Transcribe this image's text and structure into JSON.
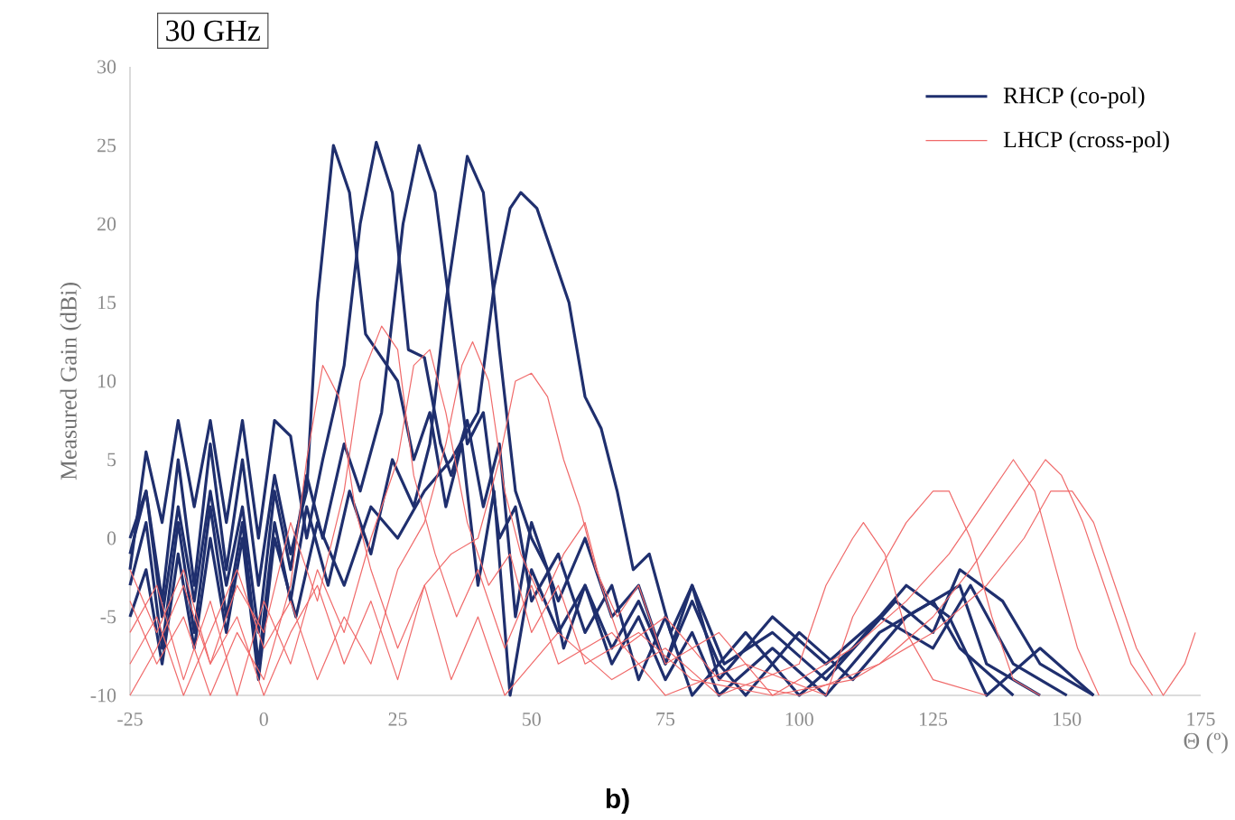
{
  "chart_data": {
    "type": "line",
    "title": "30 GHz",
    "xlabel": "Θ (º)",
    "ylabel": "Measured Gain (dBi)",
    "annotations": [
      "b)"
    ],
    "xlim": [
      -25,
      175
    ],
    "xticks": [
      -25,
      0,
      25,
      50,
      75,
      100,
      125,
      150,
      175
    ],
    "ylim": [
      -10,
      30
    ],
    "yticks": [
      -10,
      -5,
      0,
      5,
      10,
      15,
      20,
      25,
      30
    ],
    "grid": false,
    "legend": "top right",
    "marker": "none",
    "line_style": "solid",
    "series": [
      {
        "name": "RHCP (co-pol)",
        "color": "#1f2f6e",
        "x": [
          -25,
          -22,
          -19,
          -16,
          -13,
          -10,
          -7,
          -4,
          -1,
          2,
          5,
          8,
          10,
          13,
          16,
          19,
          22,
          25,
          28,
          31,
          34,
          37,
          40,
          43,
          46,
          50,
          55,
          60,
          65,
          70,
          75,
          80,
          85,
          95,
          105,
          115,
          125,
          130,
          140
        ],
        "values": [
          -1,
          3,
          -4,
          5,
          -3,
          6,
          -2,
          5,
          -3,
          4,
          -1,
          3,
          15,
          25,
          22,
          13,
          11.5,
          10,
          5,
          8,
          2,
          6,
          -3,
          3,
          -10,
          -2,
          -6,
          -3,
          -8,
          -5,
          -9,
          -6,
          -10,
          -7,
          -10,
          -6,
          -4,
          -7,
          -10
        ]
      },
      {
        "color": "#1f2f6e",
        "x": [
          -25,
          -22,
          -19,
          -16,
          -13,
          -10,
          -7,
          -4,
          -1,
          2,
          5,
          8,
          11,
          15,
          18,
          21,
          24,
          27,
          30,
          33,
          35,
          38,
          41,
          44,
          47,
          50,
          55,
          60,
          65,
          70,
          75,
          80,
          85,
          90,
          100,
          110,
          120,
          130,
          135,
          145
        ],
        "values": [
          -2,
          5.5,
          1,
          7.5,
          2,
          7.5,
          1,
          7.5,
          0,
          7.5,
          6.5,
          0,
          5,
          11,
          20,
          25.2,
          22,
          12,
          11.5,
          6,
          4,
          7.5,
          2,
          6,
          -5,
          1,
          -4,
          0,
          -5,
          -3,
          -8,
          -4,
          -8,
          -10,
          -6,
          -9,
          -5,
          -3,
          -8,
          -10
        ]
      },
      {
        "color": "#1f2f6e",
        "x": [
          -25,
          -22,
          -19,
          -16,
          -13,
          -10,
          -7,
          -4,
          -1,
          2,
          5,
          8,
          11,
          15,
          18,
          22,
          26,
          29,
          32,
          35,
          38,
          41,
          44,
          47,
          50,
          55,
          60,
          65,
          70,
          75,
          80,
          90,
          100,
          110,
          120,
          128,
          135,
          145,
          155
        ],
        "values": [
          0,
          3,
          -5,
          2,
          -4,
          3,
          -3,
          2,
          -6,
          3,
          -2,
          4,
          0,
          6,
          3,
          8,
          20,
          25,
          22,
          14,
          6,
          8,
          0,
          2,
          -4,
          -1,
          -6,
          -3,
          -9,
          -5,
          -10,
          -6,
          -10,
          -7,
          -3,
          -5,
          -10,
          -7,
          -10
        ]
      },
      {
        "color": "#1f2f6e",
        "x": [
          -25,
          -22,
          -19,
          -16,
          -13,
          -10,
          -7,
          -4,
          -1,
          2,
          5,
          8,
          12,
          16,
          20,
          24,
          28,
          31,
          34,
          38,
          41,
          44,
          47,
          50,
          53,
          56,
          60,
          65,
          70,
          75,
          80,
          85,
          95,
          105,
          115,
          125,
          132,
          140,
          150
        ],
        "values": [
          -3,
          1,
          -7,
          1,
          -6,
          2,
          -5,
          1,
          -8,
          1,
          -4,
          2,
          -3,
          3,
          -1,
          5,
          2,
          6,
          15,
          24.3,
          22,
          12,
          3,
          0,
          -2,
          -7,
          -3,
          -7,
          -4,
          -8,
          -3,
          -9,
          -5,
          -8,
          -5,
          -7,
          -3,
          -8,
          -10
        ]
      },
      {
        "color": "#1f2f6e",
        "x": [
          -25,
          -22,
          -19,
          -16,
          -13,
          -10,
          -7,
          -4,
          -1,
          2,
          6,
          10,
          15,
          20,
          25,
          30,
          35,
          40,
          43,
          46,
          48,
          51,
          54,
          57,
          60,
          63,
          66,
          69,
          72,
          76,
          80,
          86,
          95,
          105,
          118,
          125,
          130,
          138,
          145,
          155
        ],
        "values": [
          -5,
          -2,
          -8,
          -1,
          -7,
          0,
          -6,
          0,
          -9,
          0,
          -5,
          1,
          -3,
          2,
          0,
          3,
          5,
          8,
          16,
          21,
          22,
          21,
          18,
          15,
          9,
          7,
          3,
          -2,
          -1,
          -6,
          -3,
          -8,
          -6,
          -9,
          -4,
          -6,
          -2,
          -4,
          -8,
          -10
        ]
      },
      {
        "name": "LHCP (cross-pol)",
        "color": "#f06a6a",
        "x": [
          -25,
          -20,
          -15,
          -10,
          -5,
          0,
          5,
          8,
          11,
          14,
          17,
          20,
          25,
          30,
          35,
          40,
          45,
          55,
          65,
          75,
          85,
          100,
          105,
          110,
          112,
          116,
          120,
          125,
          135
        ],
        "values": [
          -4,
          -8,
          -5,
          -10,
          -6,
          -9,
          -3,
          5,
          11,
          9,
          2,
          -2,
          -7,
          -3,
          -9,
          -5,
          -10,
          -6,
          -9,
          -7,
          -10,
          -8,
          -3,
          0,
          1,
          -1,
          -6,
          -9,
          -10
        ]
      },
      {
        "color": "#f06a6a",
        "x": [
          -25,
          -20,
          -15,
          -10,
          -5,
          0,
          5,
          10,
          15,
          18,
          22,
          25,
          28,
          32,
          36,
          40,
          45,
          50,
          55,
          65,
          75,
          90,
          105,
          110,
          115,
          120,
          125,
          128,
          132,
          136,
          140,
          145
        ],
        "values": [
          -2,
          -6,
          -2,
          -8,
          -3,
          -6,
          1,
          -4,
          3,
          10,
          13.5,
          12,
          4,
          -1,
          -5,
          -2,
          -7,
          -3,
          -8,
          -6,
          -10,
          -8,
          -10,
          -5,
          -2,
          1,
          3,
          3,
          0,
          -5,
          -9,
          -10
        ]
      },
      {
        "color": "#f06a6a",
        "x": [
          -25,
          -20,
          -15,
          -10,
          -5,
          0,
          5,
          10,
          15,
          20,
          25,
          28,
          31,
          34,
          38,
          42,
          46,
          50,
          55,
          60,
          70,
          80,
          95,
          110,
          120,
          128,
          134,
          140,
          144,
          148,
          152,
          156
        ],
        "values": [
          -6,
          -3,
          -9,
          -4,
          -10,
          -4,
          -8,
          -2,
          -6,
          0,
          5,
          11,
          12,
          8,
          1,
          -3,
          -1,
          -6,
          -3,
          -8,
          -6,
          -9,
          -10,
          -7,
          -4,
          -1,
          2,
          5,
          3,
          -2,
          -7,
          -10
        ]
      },
      {
        "color": "#f06a6a",
        "x": [
          -25,
          -20,
          -15,
          -10,
          -5,
          0,
          5,
          10,
          15,
          20,
          25,
          30,
          34,
          37,
          39,
          42,
          45,
          48,
          52,
          56,
          60,
          63,
          67,
          75,
          85,
          100,
          115,
          125,
          132,
          138,
          142,
          146,
          149,
          153,
          157,
          162,
          166
        ],
        "values": [
          -8,
          -5,
          -10,
          -6,
          -2,
          -7,
          -4,
          -9,
          -5,
          -8,
          -2,
          1,
          6,
          11,
          12.5,
          10,
          3,
          -1,
          -4,
          -1,
          1,
          -3,
          -7,
          -5,
          -9,
          -10,
          -8,
          -5,
          -2,
          1,
          3,
          5,
          4,
          1,
          -3,
          -8,
          -10
        ]
      },
      {
        "color": "#f06a6a",
        "x": [
          -25,
          -20,
          -15,
          -10,
          -5,
          0,
          5,
          10,
          15,
          20,
          25,
          30,
          35,
          40,
          44,
          47,
          50,
          53,
          56,
          59,
          62,
          66,
          70,
          75,
          85,
          95,
          110,
          125,
          135,
          142,
          147,
          151,
          155,
          159,
          163,
          168,
          172,
          174
        ],
        "values": [
          -10,
          -7,
          -3,
          -8,
          -5,
          -10,
          -6,
          -3,
          -8,
          -4,
          -9,
          -3,
          -1,
          0,
          5,
          10,
          10.5,
          9,
          5,
          2,
          -2,
          -5,
          -3,
          -8,
          -6,
          -10,
          -9,
          -6,
          -3,
          0,
          3,
          3,
          1,
          -3,
          -7,
          -10,
          -8,
          -6
        ]
      }
    ]
  }
}
